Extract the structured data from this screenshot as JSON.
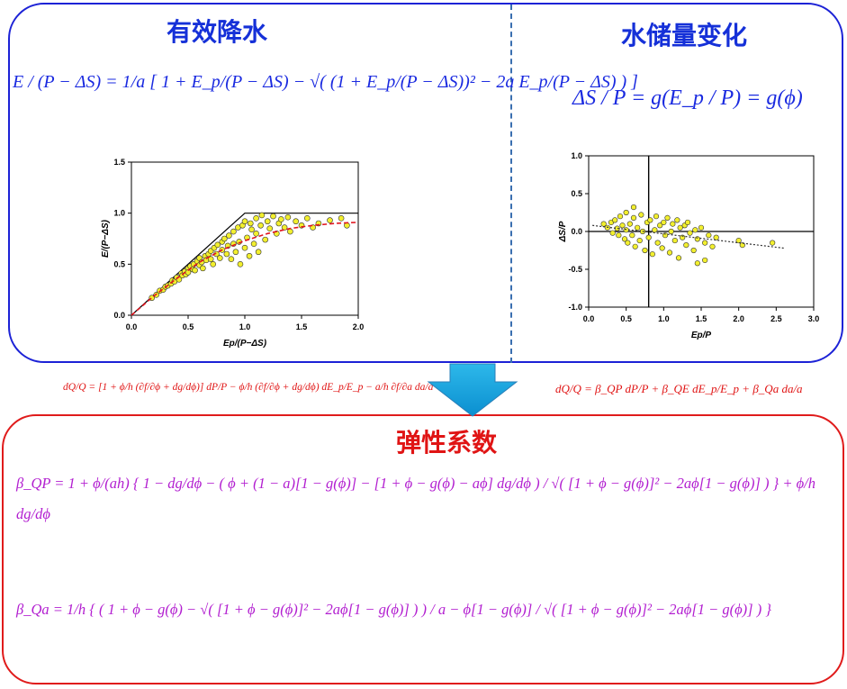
{
  "titles": {
    "effective_precip": "有效降水",
    "storage_change": "水储量变化",
    "elasticity": "弹性系数"
  },
  "equations": {
    "effective_precip": "E / (P − ΔS) = 1/a [ 1 + E_p/(P − ΔS) − √( (1 + E_p/(P − ΔS))² − 2a E_p/(P − ΔS) ) ]",
    "storage_change": "ΔS / P = g(E_p / P) = g(ϕ)",
    "dq_left": "dQ/Q = [1 + ϕ/h (∂f/∂ϕ + dg/dϕ)] dP/P − ϕ/h (∂f/∂ϕ + dg/dϕ) dE_p/E_p − a/h ∂f/∂a da/a",
    "dq_right": "dQ/Q = β_QP dP/P + β_QE dE_p/E_p + β_Qa da/a",
    "beta_qp": "β_QP = 1 + ϕ/(ah) { 1 − dg/dϕ − ( ϕ + (1 − a)[1 − g(ϕ)] − [1 + ϕ − g(ϕ) − aϕ] dg/dϕ ) / √( [1 + ϕ − g(ϕ)]² − 2aϕ[1 − g(ϕ)] ) } + ϕ/h dg/dϕ",
    "beta_qa": "β_Qa = 1/h { ( 1 + ϕ − g(ϕ) − √( [1 + ϕ − g(ϕ)]² − 2aϕ[1 − g(ϕ)] ) ) / a − ϕ[1 − g(ϕ)] / √( [1 + ϕ − g(ϕ)]² − 2aϕ[1 − g(ϕ)] ) }"
  },
  "colors": {
    "top_border": "#1c22d6",
    "bottom_border": "#e01b1b",
    "blue_text": "#1530d8",
    "red_text": "#e01414",
    "purple_text": "#b21ed0",
    "arrow_fill": "#14a8e0",
    "point_fill": "#f2ef2e",
    "fit_line": "#e0141e"
  },
  "chart_data": [
    {
      "type": "scatter",
      "title": "",
      "xlabel": "Ep/(P−ΔS)",
      "ylabel": "E/(P−ΔS)",
      "xlim": [
        0,
        2.0
      ],
      "ylim": [
        0,
        1.5
      ],
      "xticks": [
        "0.0",
        "0.5",
        "1.0",
        "1.5",
        "2.0"
      ],
      "yticks": [
        "0.0",
        "0.5",
        "1.0",
        "1.5"
      ],
      "envelope": [
        [
          0,
          0
        ],
        [
          1.0,
          1.0
        ],
        [
          2.0,
          1.0
        ]
      ],
      "fit_curve": [
        [
          0.0,
          0.0
        ],
        [
          0.2,
          0.19
        ],
        [
          0.4,
          0.36
        ],
        [
          0.6,
          0.52
        ],
        [
          0.8,
          0.64
        ],
        [
          1.0,
          0.73
        ],
        [
          1.2,
          0.8
        ],
        [
          1.4,
          0.85
        ],
        [
          1.6,
          0.88
        ],
        [
          1.8,
          0.9
        ],
        [
          2.0,
          0.91
        ]
      ],
      "points": [
        [
          0.18,
          0.17
        ],
        [
          0.22,
          0.2
        ],
        [
          0.25,
          0.24
        ],
        [
          0.28,
          0.25
        ],
        [
          0.3,
          0.28
        ],
        [
          0.32,
          0.29
        ],
        [
          0.35,
          0.31
        ],
        [
          0.36,
          0.34
        ],
        [
          0.38,
          0.33
        ],
        [
          0.4,
          0.37
        ],
        [
          0.42,
          0.35
        ],
        [
          0.44,
          0.41
        ],
        [
          0.45,
          0.39
        ],
        [
          0.47,
          0.43
        ],
        [
          0.48,
          0.4
        ],
        [
          0.5,
          0.46
        ],
        [
          0.5,
          0.42
        ],
        [
          0.52,
          0.48
        ],
        [
          0.54,
          0.45
        ],
        [
          0.55,
          0.5
        ],
        [
          0.56,
          0.44
        ],
        [
          0.58,
          0.53
        ],
        [
          0.6,
          0.49
        ],
        [
          0.6,
          0.56
        ],
        [
          0.62,
          0.52
        ],
        [
          0.63,
          0.46
        ],
        [
          0.65,
          0.58
        ],
        [
          0.66,
          0.54
        ],
        [
          0.68,
          0.6
        ],
        [
          0.7,
          0.55
        ],
        [
          0.7,
          0.63
        ],
        [
          0.72,
          0.5
        ],
        [
          0.73,
          0.66
        ],
        [
          0.75,
          0.6
        ],
        [
          0.76,
          0.69
        ],
        [
          0.78,
          0.56
        ],
        [
          0.8,
          0.72
        ],
        [
          0.8,
          0.64
        ],
        [
          0.82,
          0.75
        ],
        [
          0.84,
          0.6
        ],
        [
          0.85,
          0.68
        ],
        [
          0.86,
          0.78
        ],
        [
          0.88,
          0.55
        ],
        [
          0.9,
          0.7
        ],
        [
          0.9,
          0.82
        ],
        [
          0.92,
          0.62
        ],
        [
          0.94,
          0.86
        ],
        [
          0.95,
          0.72
        ],
        [
          0.96,
          0.5
        ],
        [
          0.98,
          0.88
        ],
        [
          1.0,
          0.66
        ],
        [
          1.0,
          0.92
        ],
        [
          1.02,
          0.76
        ],
        [
          1.04,
          0.58
        ],
        [
          1.05,
          0.9
        ],
        [
          1.06,
          0.84
        ],
        [
          1.08,
          0.7
        ],
        [
          1.1,
          0.95
        ],
        [
          1.1,
          0.8
        ],
        [
          1.12,
          0.62
        ],
        [
          1.14,
          0.88
        ],
        [
          1.15,
          0.98
        ],
        [
          1.18,
          0.74
        ],
        [
          1.2,
          0.92
        ],
        [
          1.22,
          0.85
        ],
        [
          1.25,
          0.97
        ],
        [
          1.28,
          0.8
        ],
        [
          1.3,
          0.9
        ],
        [
          1.32,
          0.94
        ],
        [
          1.35,
          0.86
        ],
        [
          1.38,
          0.96
        ],
        [
          1.4,
          0.82
        ],
        [
          1.45,
          0.92
        ],
        [
          1.5,
          0.88
        ],
        [
          1.55,
          0.95
        ],
        [
          1.6,
          0.86
        ],
        [
          1.65,
          0.9
        ],
        [
          1.75,
          0.93
        ],
        [
          1.85,
          0.95
        ],
        [
          1.9,
          0.88
        ]
      ]
    },
    {
      "type": "scatter",
      "title": "",
      "xlabel": "Ep/P",
      "ylabel": "ΔS/P",
      "xlim": [
        0,
        3.0
      ],
      "ylim": [
        -1.0,
        1.0
      ],
      "xticks": [
        "0.0",
        "0.5",
        "1.0",
        "1.5",
        "2.0",
        "2.5",
        "3.0"
      ],
      "yticks": [
        "1.0",
        "0.5",
        "0.0",
        "-0.5",
        "-1.0"
      ],
      "vline_x": 0.8,
      "hline_y": 0.0,
      "trend_line": [
        [
          0.05,
          0.08
        ],
        [
          2.6,
          -0.22
        ]
      ],
      "points": [
        [
          0.2,
          0.1
        ],
        [
          0.25,
          0.05
        ],
        [
          0.3,
          0.12
        ],
        [
          0.32,
          -0.02
        ],
        [
          0.35,
          0.15
        ],
        [
          0.38,
          0.04
        ],
        [
          0.4,
          -0.05
        ],
        [
          0.42,
          0.2
        ],
        [
          0.45,
          0.08
        ],
        [
          0.48,
          -0.1
        ],
        [
          0.5,
          0.02
        ],
        [
          0.5,
          0.25
        ],
        [
          0.52,
          -0.15
        ],
        [
          0.55,
          0.1
        ],
        [
          0.58,
          -0.05
        ],
        [
          0.6,
          0.18
        ],
        [
          0.6,
          0.32
        ],
        [
          0.62,
          -0.2
        ],
        [
          0.65,
          0.05
        ],
        [
          0.68,
          -0.12
        ],
        [
          0.7,
          0.22
        ],
        [
          0.72,
          0.0
        ],
        [
          0.75,
          -0.25
        ],
        [
          0.78,
          0.12
        ],
        [
          0.8,
          -0.08
        ],
        [
          0.82,
          0.15
        ],
        [
          0.85,
          -0.3
        ],
        [
          0.88,
          0.02
        ],
        [
          0.9,
          0.2
        ],
        [
          0.92,
          -0.15
        ],
        [
          0.95,
          0.08
        ],
        [
          0.98,
          -0.22
        ],
        [
          1.0,
          0.12
        ],
        [
          1.02,
          -0.05
        ],
        [
          1.05,
          0.18
        ],
        [
          1.08,
          -0.28
        ],
        [
          1.1,
          0.0
        ],
        [
          1.12,
          0.1
        ],
        [
          1.15,
          -0.12
        ],
        [
          1.18,
          0.15
        ],
        [
          1.2,
          -0.35
        ],
        [
          1.22,
          0.05
        ],
        [
          1.25,
          -0.08
        ],
        [
          1.28,
          0.08
        ],
        [
          1.3,
          -0.18
        ],
        [
          1.32,
          0.12
        ],
        [
          1.35,
          -0.02
        ],
        [
          1.4,
          -0.25
        ],
        [
          1.42,
          0.02
        ],
        [
          1.45,
          -0.1
        ],
        [
          1.5,
          0.05
        ],
        [
          1.55,
          -0.15
        ],
        [
          1.6,
          -0.05
        ],
        [
          1.65,
          -0.2
        ],
        [
          1.7,
          -0.08
        ],
        [
          1.45,
          -0.42
        ],
        [
          1.55,
          -0.38
        ],
        [
          2.0,
          -0.12
        ],
        [
          2.05,
          -0.18
        ],
        [
          2.45,
          -0.15
        ]
      ]
    }
  ]
}
